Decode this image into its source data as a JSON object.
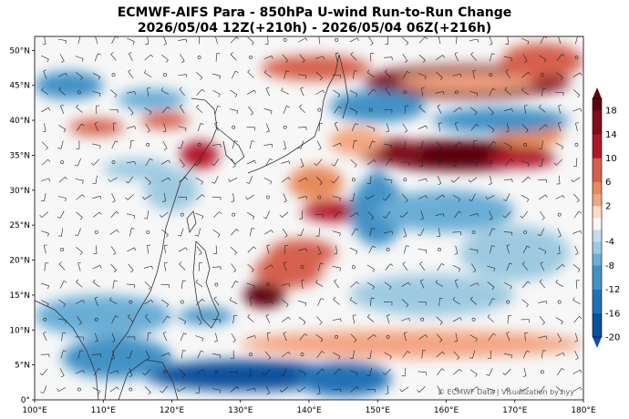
{
  "title": {
    "line1": "ECMWF-AIFS Para  - 850hPa U-wind Run-to-Run Change",
    "line2": "2026/05/04 12Z(+210h) - 2026/05/04 06Z(+216h)"
  },
  "credit": "© ECMWF Data | Visualization by hyy",
  "map": {
    "lon_range": [
      100,
      180
    ],
    "lat_range": [
      0,
      52
    ],
    "lon_ticks": [
      "100°E",
      "110°E",
      "120°E",
      "130°E",
      "140°E",
      "150°E",
      "160°E",
      "170°E",
      "180°E"
    ],
    "lat_ticks": [
      "0°",
      "5°N",
      "10°N",
      "15°N",
      "20°N",
      "25°N",
      "30°N",
      "35°N",
      "40°N",
      "45°N",
      "50°N"
    ],
    "background_color": "#f7f7f7",
    "features": [
      {
        "lon": 163,
        "lat": 45.5,
        "rlon": 15,
        "rlat": 2.4,
        "v": 16
      },
      {
        "lon": 141,
        "lat": 47.5,
        "rlon": 8,
        "rlat": 1.8,
        "v": 10
      },
      {
        "lon": 174,
        "lat": 48.5,
        "rlon": 6,
        "rlat": 2.5,
        "v": 10
      },
      {
        "lon": 162,
        "lat": 35,
        "rlon": 13,
        "rlat": 2.2,
        "v": 20
      },
      {
        "lon": 152,
        "lat": 35.5,
        "rlon": 5,
        "rlat": 1.8,
        "v": 18
      },
      {
        "lon": 171,
        "lat": 34.5,
        "rlon": 5,
        "rlat": 1.3,
        "v": 12
      },
      {
        "lon": 141,
        "lat": 31,
        "rlon": 4,
        "rlat": 2.5,
        "v": 6
      },
      {
        "lon": 144,
        "lat": 27,
        "rlon": 5,
        "rlat": 1.5,
        "v": 12
      },
      {
        "lon": 139,
        "lat": 21,
        "rlon": 5,
        "rlat": 2,
        "v": 8
      },
      {
        "lon": 133.5,
        "lat": 15,
        "rlon": 3,
        "rlat": 1.8,
        "v": 20
      },
      {
        "lon": 137,
        "lat": 18.5,
        "rlon": 5,
        "rlat": 2.5,
        "v": 8
      },
      {
        "lon": 124,
        "lat": 35,
        "rlon": 2.8,
        "rlat": 2,
        "v": 14
      },
      {
        "lon": 109,
        "lat": 39,
        "rlon": 4,
        "rlat": 1.2,
        "v": 10
      },
      {
        "lon": 119,
        "lat": 40,
        "rlon": 3.5,
        "rlat": 1.2,
        "v": 8
      },
      {
        "lon": 147,
        "lat": 37,
        "rlon": 4,
        "rlat": 2,
        "v": 4
      },
      {
        "lon": 155,
        "lat": 8,
        "rlon": 25,
        "rlat": 2,
        "v": 4
      },
      {
        "lon": 172,
        "lat": 38,
        "rlon": 5,
        "rlat": 2,
        "v": 6
      },
      {
        "lon": 150,
        "lat": 42,
        "rlon": 7,
        "rlat": 2.3,
        "v": -8
      },
      {
        "lon": 168,
        "lat": 40,
        "rlon": 10,
        "rlat": 1.8,
        "v": -10
      },
      {
        "lon": 150,
        "lat": 30,
        "rlon": 1.5,
        "rlat": 3,
        "v": -14
      },
      {
        "lon": 150,
        "lat": 27,
        "rlon": 4,
        "rlat": 5,
        "v": -8
      },
      {
        "lon": 160,
        "lat": 27,
        "rlon": 10,
        "rlat": 3,
        "v": -6
      },
      {
        "lon": 170,
        "lat": 21,
        "rlon": 8,
        "rlat": 4,
        "v": -5
      },
      {
        "lon": 158,
        "lat": 15,
        "rlon": 12,
        "rlat": 3,
        "v": -4
      },
      {
        "lon": 131,
        "lat": 3.5,
        "rlon": 15,
        "rlat": 2.2,
        "v": -20
      },
      {
        "lon": 145,
        "lat": 3,
        "rlon": 7,
        "rlat": 2.5,
        "v": -14
      },
      {
        "lon": 112,
        "lat": 6,
        "rlon": 8,
        "rlat": 3,
        "v": -8
      },
      {
        "lon": 110,
        "lat": 12,
        "rlon": 10,
        "rlat": 3,
        "v": -6
      },
      {
        "lon": 125,
        "lat": 12,
        "rlon": 4,
        "rlat": 1.2,
        "v": -10
      },
      {
        "lon": 105,
        "lat": 45,
        "rlon": 5,
        "rlat": 2,
        "v": -10
      },
      {
        "lon": 117,
        "lat": 43,
        "rlon": 5,
        "rlat": 1.5,
        "v": -6
      },
      {
        "lon": 120,
        "lat": 30,
        "rlon": 4,
        "rlat": 3,
        "v": -5
      },
      {
        "lon": 115,
        "lat": 33,
        "rlon": 5,
        "rlat": 1.5,
        "v": -4
      },
      {
        "lon": 163,
        "lat": 45.5,
        "rlon": 10,
        "rlat": 1.3,
        "v": 4
      }
    ]
  },
  "colorbar": {
    "ticks": [
      "18",
      "14",
      "10",
      "6",
      "2",
      "-4",
      "-8",
      "-12",
      "-16",
      "-20"
    ],
    "range": [
      -20,
      20
    ],
    "colors": [
      {
        "v": -20,
        "c": "#08306b"
      },
      {
        "v": -16,
        "c": "#08519c"
      },
      {
        "v": -12,
        "c": "#2171b5"
      },
      {
        "v": -8,
        "c": "#4292c6"
      },
      {
        "v": -6,
        "c": "#6baed6"
      },
      {
        "v": -4,
        "c": "#9ecae1"
      },
      {
        "v": -2,
        "c": "#c6dbef"
      },
      {
        "v": 0,
        "c": "#f7f7f7"
      },
      {
        "v": 2,
        "c": "#fddbc7"
      },
      {
        "v": 4,
        "c": "#f4a582"
      },
      {
        "v": 6,
        "c": "#e78a5a"
      },
      {
        "v": 10,
        "c": "#d6604d"
      },
      {
        "v": 14,
        "c": "#b2182b"
      },
      {
        "v": 18,
        "c": "#7f0d1a"
      },
      {
        "v": 20,
        "c": "#5a0610"
      }
    ]
  }
}
